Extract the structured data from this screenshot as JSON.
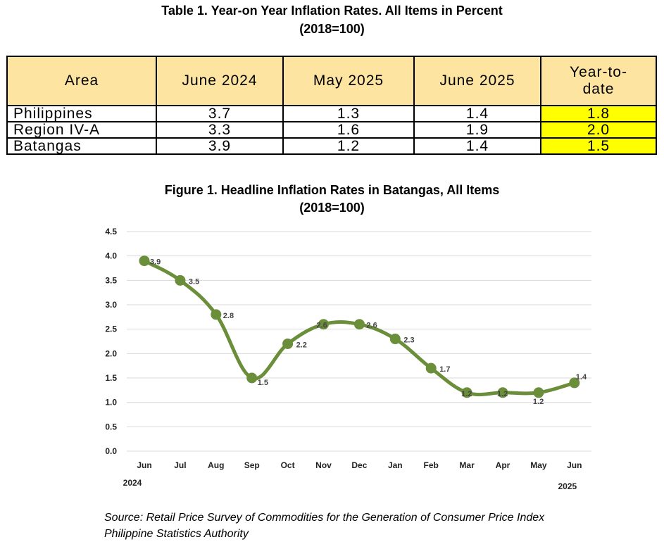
{
  "table": {
    "title": "Table 1. Year-on Year Inflation Rates.  All Items in Percent",
    "subtitle": "(2018=100)",
    "headers": [
      "Area",
      "June 2024",
      "May 2025",
      "June 2025",
      "Year-to-date"
    ],
    "rows": [
      [
        "Philippines",
        "3.7",
        "1.3",
        "1.4",
        "1.8"
      ],
      [
        "Region IV-A",
        "3.3",
        "1.6",
        "1.9",
        "2.0"
      ],
      [
        "Batangas",
        "3.9",
        "1.2",
        "1.4",
        "1.5"
      ]
    ],
    "highlight_color": "#ffff00",
    "header_color": "#fde5a1"
  },
  "figure": {
    "title": "Figure 1. Headline Inflation Rates in Batangas, All Items",
    "subtitle": "(2018=100)"
  },
  "chart_data": {
    "type": "line",
    "categories": [
      "Jun",
      "Jul",
      "Aug",
      "Sep",
      "Oct",
      "Nov",
      "Dec",
      "Jan",
      "Feb",
      "Mar",
      "Apr",
      "May",
      "Jun"
    ],
    "year_labels": [
      "2024",
      "2025"
    ],
    "series": [
      {
        "values": [
          3.9,
          3.5,
          2.8,
          1.5,
          2.2,
          2.6,
          2.6,
          2.3,
          1.7,
          1.2,
          1.2,
          1.2,
          1.4
        ],
        "color": "#6b8e3a"
      }
    ],
    "data_labels": [
      "3.9",
      "3.5",
      "2.8",
      "1.5",
      "2.2",
      "2.6",
      "2.6",
      "2.3",
      "1.7",
      "1.2",
      "1.2",
      "1.2",
      "1.4"
    ],
    "yticks": [
      "0.0",
      "0.5",
      "1.0",
      "1.5",
      "2.0",
      "2.5",
      "3.0",
      "3.5",
      "4.0",
      "4.5"
    ],
    "ylim": [
      0,
      4.5
    ],
    "grid": true,
    "legend": "none"
  },
  "source": {
    "line1": "Source: Retail Price Survey of Commodities for the Generation of Consumer Price Index",
    "line2": "Philippine Statistics Authority"
  }
}
